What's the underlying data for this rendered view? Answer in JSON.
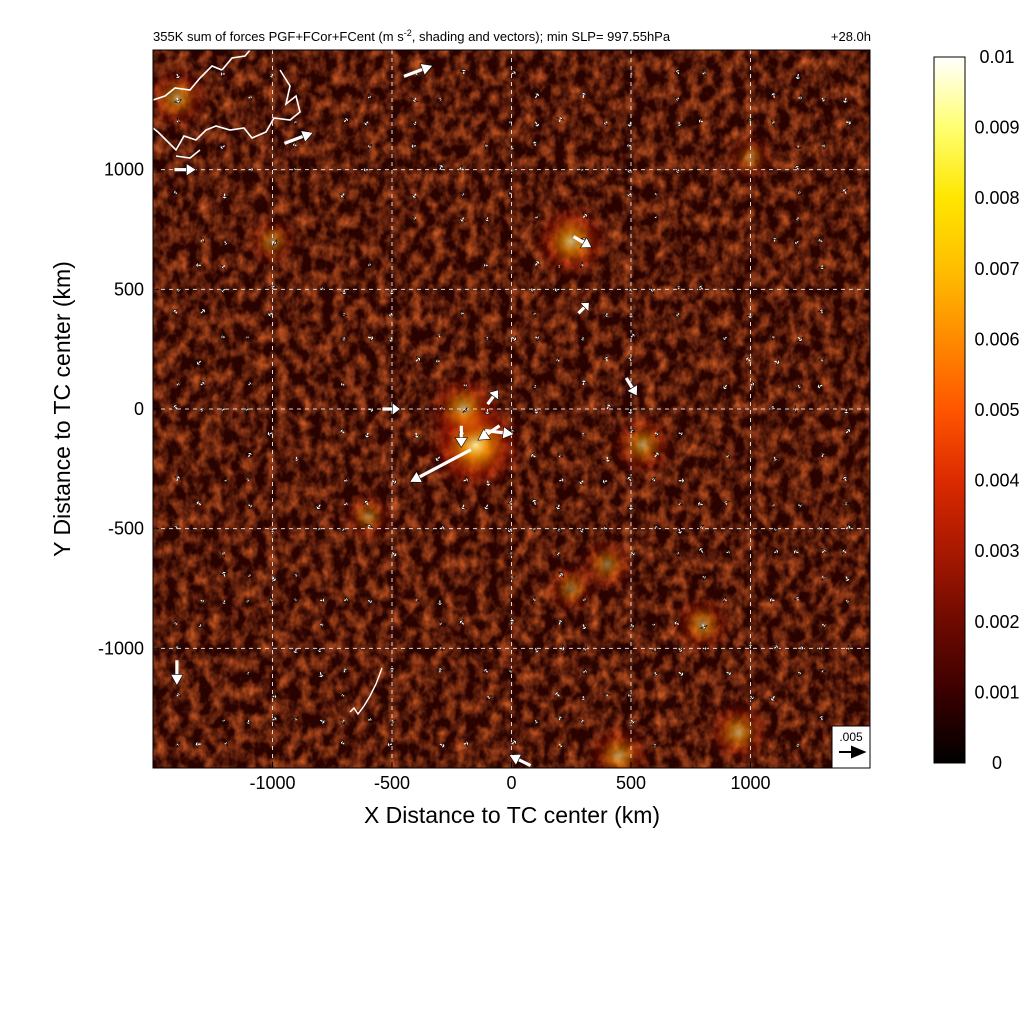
{
  "chart_data": {
    "type": "heatmap",
    "title": "355K sum of forces PGF+FCor+FCent (m s⁻², shading and vectors); min SLP= 997.55hPa",
    "title_main": "355K sum of forces PGF+FCor+FCent (m s",
    "title_sup": "-2",
    "title_rest": ", shading and vectors); min SLP= 997.55hPa",
    "time_label": "+28.0h",
    "xlabel": "X Distance to TC center (km)",
    "ylabel": "Y Distance to TC center (km)",
    "xlim": [
      -1500,
      1500
    ],
    "ylim": [
      -1500,
      1500
    ],
    "xticks": [
      -1000,
      -500,
      0,
      500,
      1000
    ],
    "yticks": [
      -1000,
      -500,
      0,
      500,
      1000
    ],
    "grid": true,
    "colorbar": {
      "range": [
        0,
        0.01
      ],
      "ticks": [
        "0",
        "0.001",
        "0.002",
        "0.003",
        "0.004",
        "0.005",
        "0.006",
        "0.007",
        "0.008",
        "0.009",
        "0.01"
      ],
      "colors": [
        "#000000",
        "#3a0000",
        "#6e0a00",
        "#a81800",
        "#dc2a00",
        "#ff5500",
        "#ff8a00",
        "#ffbe00",
        "#ffe600",
        "#ffff70",
        "#ffffff"
      ]
    },
    "reference_vector": {
      "label": ".005",
      "value": 0.005
    },
    "hotspots": [
      {
        "x": -150,
        "y": -150,
        "strength": 1.0
      },
      {
        "x": -200,
        "y": 0,
        "strength": 0.7
      },
      {
        "x": 250,
        "y": 700,
        "strength": 0.75
      },
      {
        "x": 550,
        "y": -150,
        "strength": 0.6
      },
      {
        "x": 400,
        "y": -650,
        "strength": 0.5
      },
      {
        "x": 800,
        "y": -900,
        "strength": 0.55
      },
      {
        "x": 950,
        "y": -1350,
        "strength": 0.6
      },
      {
        "x": 450,
        "y": -1450,
        "strength": 0.6
      },
      {
        "x": -1400,
        "y": 1300,
        "strength": 0.6
      },
      {
        "x": -1000,
        "y": 700,
        "strength": 0.45
      },
      {
        "x": -600,
        "y": -450,
        "strength": 0.45
      },
      {
        "x": 1000,
        "y": 1050,
        "strength": 0.4
      },
      {
        "x": 250,
        "y": -750,
        "strength": 0.45
      }
    ],
    "large_vectors": [
      {
        "x": -170,
        "y": -170,
        "u": -0.0085,
        "v": -0.0045
      },
      {
        "x": -50,
        "y": -70,
        "u": -0.003,
        "v": -0.002
      },
      {
        "x": -110,
        "y": -90,
        "u": 0.004,
        "v": -0.0005
      },
      {
        "x": -100,
        "y": 20,
        "u": 0.0015,
        "v": 0.002
      },
      {
        "x": -210,
        "y": -70,
        "u": 0.0,
        "v": -0.003
      },
      {
        "x": -540,
        "y": 0,
        "u": 0.0025,
        "v": 0.0
      },
      {
        "x": -450,
        "y": 1390,
        "u": 0.004,
        "v": 0.0015
      },
      {
        "x": -950,
        "y": 1110,
        "u": 0.004,
        "v": 0.0015
      },
      {
        "x": -1410,
        "y": 1000,
        "u": 0.003,
        "v": 0.0
      },
      {
        "x": -1400,
        "y": -1050,
        "u": 0.0,
        "v": -0.0035
      },
      {
        "x": 80,
        "y": -1490,
        "u": -0.003,
        "v": 0.0015
      },
      {
        "x": 480,
        "y": 130,
        "u": 0.0015,
        "v": -0.0025
      },
      {
        "x": 260,
        "y": 720,
        "u": 0.0025,
        "v": -0.0015
      },
      {
        "x": 280,
        "y": 400,
        "u": 0.0015,
        "v": 0.0015
      }
    ],
    "coastline_label": "coastline (white contour, upper-left)"
  }
}
